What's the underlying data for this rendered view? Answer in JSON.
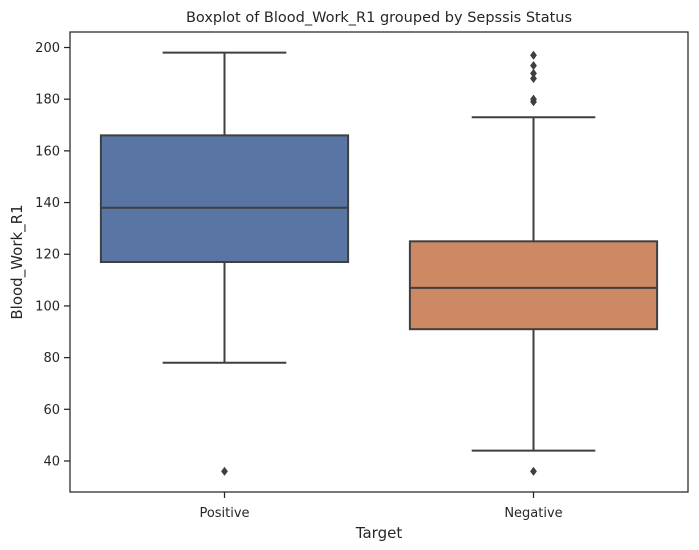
{
  "chart_data": {
    "type": "box",
    "title": "Boxplot of Blood_Work_R1 grouped by Sepssis Status",
    "xlabel": "Target",
    "ylabel": "Blood_Work_R1",
    "ylim": [
      28,
      206
    ],
    "yticks": [
      "40",
      "60",
      "80",
      "100",
      "120",
      "140",
      "160",
      "180",
      "200"
    ],
    "grid": false,
    "categories": [
      "Positive",
      "Negative"
    ],
    "boxes": [
      {
        "category": "Positive",
        "color": "#5875a4",
        "whisker_low": 78,
        "q1": 117,
        "median": 138,
        "q3": 166,
        "whisker_high": 198,
        "outliers": [
          36
        ]
      },
      {
        "category": "Negative",
        "color": "#cc8963",
        "whisker_low": 44,
        "q1": 91,
        "median": 107,
        "q3": 125,
        "whisker_high": 173,
        "outliers": [
          36,
          179,
          180,
          188,
          190,
          193,
          197
        ]
      }
    ]
  }
}
